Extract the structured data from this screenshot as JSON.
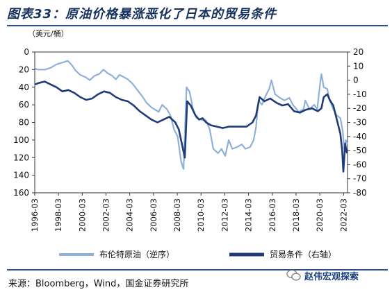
{
  "header": {
    "title": "图表33：原油价格暴涨恶化了日本的贸易条件"
  },
  "footer": {
    "source": "来源：Bloomberg，Wind，国金证券研究所",
    "watermark": "赵伟宏观探索",
    "watermark_icon": "wechat-icon"
  },
  "chart_data": {
    "type": "line",
    "unit_label": "（美元/桶）",
    "x_ticks": [
      "1996-03",
      "1998-03",
      "2000-03",
      "2002-03",
      "2004-03",
      "2006-03",
      "2008-03",
      "2010-03",
      "2012-03",
      "2014-03",
      "2016-03",
      "2018-03",
      "2020-03",
      "2022-03"
    ],
    "x_range": [
      1996.17,
      2022.5
    ],
    "left_axis": {
      "ticks": [
        "0",
        "20",
        "40",
        "60",
        "80",
        "100",
        "120",
        "140",
        "160"
      ],
      "range": [
        0,
        160
      ],
      "reversed": true
    },
    "right_axis": {
      "ticks": [
        "20",
        "10",
        "0",
        "-10",
        "-20",
        "-30",
        "-40",
        "-50",
        "-60",
        "-70",
        "-80"
      ],
      "range": [
        -80,
        20
      ]
    },
    "legend_position": "bottom",
    "series": [
      {
        "name": "布伦特原油（逆序）",
        "axis": "left",
        "color": "#8fb0d8",
        "x": [
          1996.2,
          1996.5,
          1997.0,
          1997.5,
          1998.0,
          1998.5,
          1998.95,
          1999.3,
          1999.6,
          2000.0,
          2000.5,
          2000.8,
          2001.2,
          2001.6,
          2001.95,
          2002.3,
          2002.7,
          2003.0,
          2003.3,
          2003.6,
          2004.0,
          2004.4,
          2004.8,
          2005.2,
          2005.6,
          2006.0,
          2006.6,
          2006.9,
          2007.3,
          2007.6,
          2007.9,
          2008.2,
          2008.5,
          2008.7,
          2008.95,
          2009.2,
          2009.5,
          2009.8,
          2010.2,
          2010.6,
          2010.9,
          2011.2,
          2011.6,
          2011.9,
          2012.2,
          2012.5,
          2012.8,
          2013.2,
          2013.6,
          2013.9,
          2014.3,
          2014.6,
          2014.8,
          2015.0,
          2015.3,
          2015.6,
          2015.9,
          2016.1,
          2016.4,
          2016.8,
          2017.2,
          2017.6,
          2017.9,
          2018.4,
          2018.8,
          2018.95,
          2019.3,
          2019.7,
          2019.95,
          2020.2,
          2020.3,
          2020.5,
          2020.8,
          2021.0,
          2021.3,
          2021.6,
          2021.9,
          2022.1,
          2022.2,
          2022.35,
          2022.5
        ],
        "values": [
          19,
          20,
          20,
          18,
          14,
          12,
          10,
          15,
          21,
          26,
          29,
          32,
          27,
          25,
          20,
          24,
          27,
          31,
          26,
          28,
          31,
          36,
          43,
          50,
          58,
          63,
          68,
          60,
          65,
          72,
          88,
          96,
          125,
          133,
          40,
          45,
          65,
          75,
          77,
          78,
          88,
          110,
          115,
          110,
          118,
          100,
          110,
          108,
          105,
          110,
          108,
          100,
          85,
          55,
          60,
          50,
          42,
          32,
          48,
          52,
          55,
          52,
          60,
          68,
          65,
          55,
          65,
          60,
          65,
          35,
          25,
          40,
          42,
          55,
          65,
          72,
          75,
          90,
          110,
          100,
          105
        ]
      },
      {
        "name": "贸易条件（右轴）",
        "axis": "right",
        "color": "#1f3c78",
        "x": [
          1996.2,
          1996.5,
          1997.0,
          1997.5,
          1998.0,
          1998.5,
          1999.0,
          1999.5,
          2000.0,
          2000.5,
          2001.0,
          2001.5,
          2002.0,
          2002.5,
          2003.0,
          2003.5,
          2004.0,
          2004.5,
          2005.0,
          2005.5,
          2006.0,
          2006.5,
          2007.0,
          2007.5,
          2008.0,
          2008.3,
          2008.55,
          2008.8,
          2009.0,
          2009.3,
          2009.7,
          2010.0,
          2010.3,
          2010.6,
          2011.0,
          2011.5,
          2012.0,
          2012.5,
          2013.0,
          2013.5,
          2014.0,
          2014.5,
          2014.8,
          2015.1,
          2015.5,
          2016.0,
          2016.5,
          2017.0,
          2017.5,
          2018.0,
          2018.5,
          2019.0,
          2019.5,
          2020.0,
          2020.3,
          2020.5,
          2020.8,
          2021.0,
          2021.3,
          2021.6,
          2021.9,
          2022.05,
          2022.15,
          2022.3,
          2022.45
        ],
        "values": [
          -3,
          -2,
          -1,
          -3,
          -5,
          -8,
          -7,
          -9,
          -12,
          -14,
          -13,
          -10,
          -8,
          -9,
          -12,
          -14,
          -15,
          -18,
          -22,
          -25,
          -28,
          -30,
          -28,
          -26,
          -30,
          -35,
          -45,
          -55,
          -15,
          -18,
          -25,
          -28,
          -27,
          -30,
          -32,
          -33,
          -34,
          -33,
          -33,
          -33,
          -33,
          -30,
          -25,
          -12,
          -15,
          -13,
          -16,
          -18,
          -17,
          -22,
          -23,
          -21,
          -20,
          -22,
          -20,
          -12,
          -10,
          -14,
          -18,
          -28,
          -38,
          -50,
          -65,
          -45,
          -52
        ]
      }
    ]
  }
}
